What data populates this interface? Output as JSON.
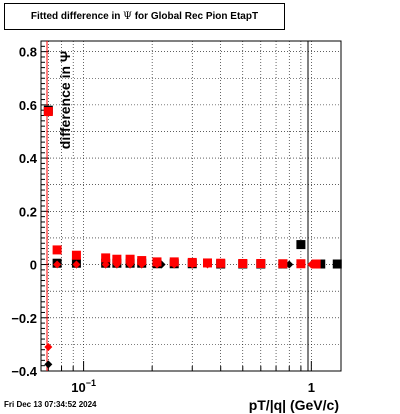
{
  "title": {
    "prefix": "Fitted difference in ",
    "symbol": "Ψ",
    "suffix": " for Global Rec Pion EtapT"
  },
  "timestamp": "Fri Dec 13 07:34:52 2024",
  "chart_data": {
    "type": "scatter",
    "title": "Fitted difference in Ψ for Global Rec Pion EtapT",
    "xlabel": "pT/|q| (GeV/c)",
    "ylabel": "difference in Ψ",
    "x_scale": "log",
    "xlim": [
      0.065,
      1.35
    ],
    "ylim": [
      -0.4,
      0.84
    ],
    "grid": true,
    "x_tick_labels": [
      {
        "value": 0.1,
        "base": "10",
        "exp": "−1"
      },
      {
        "value": 1,
        "base": "1",
        "exp": ""
      }
    ],
    "y_ticks": [
      -0.4,
      -0.2,
      0,
      0.2,
      0.4,
      0.6,
      0.8
    ],
    "y_tick_labels": [
      "−0.4",
      "−0.2",
      "0",
      "0.2",
      "0.4",
      "0.6",
      "0.8"
    ],
    "series": [
      {
        "marker": "square",
        "color": "#000000",
        "points": [
          {
            "x": 0.07,
            "y": 0.58
          },
          {
            "x": 0.0765,
            "y": 0.005
          },
          {
            "x": 0.093,
            "y": 0.005
          },
          {
            "x": 0.125,
            "y": 0.005
          },
          {
            "x": 0.14,
            "y": 0.005
          },
          {
            "x": 0.16,
            "y": 0.005
          },
          {
            "x": 0.18,
            "y": 0.005
          },
          {
            "x": 0.21,
            "y": 0.003
          },
          {
            "x": 0.25,
            "y": 0.003
          },
          {
            "x": 0.3,
            "y": 0.003
          },
          {
            "x": 0.4,
            "y": 0.002
          },
          {
            "x": 0.5,
            "y": 0.002
          },
          {
            "x": 0.6,
            "y": 0.002
          },
          {
            "x": 0.75,
            "y": 0.002
          },
          {
            "x": 0.9,
            "y": 0.075
          },
          {
            "x": 1.1,
            "y": 0.002
          },
          {
            "x": 1.3,
            "y": 0.002
          }
        ]
      },
      {
        "marker": "diamond",
        "color": "#000000",
        "points": [
          {
            "x": 0.07,
            "y": -0.375
          },
          {
            "x": 0.0765,
            "y": 0.005
          },
          {
            "x": 0.093,
            "y": 0.0
          },
          {
            "x": 0.125,
            "y": 0.0
          },
          {
            "x": 0.14,
            "y": 0.0
          },
          {
            "x": 0.16,
            "y": 0.0
          },
          {
            "x": 0.18,
            "y": 0.0
          },
          {
            "x": 0.22,
            "y": 0.0
          },
          {
            "x": 0.3,
            "y": 0.0
          },
          {
            "x": 0.5,
            "y": 0.0
          },
          {
            "x": 0.8,
            "y": 0.0
          },
          {
            "x": 1.05,
            "y": 0.0
          }
        ]
      },
      {
        "marker": "square",
        "color": "#ff0000",
        "points": [
          {
            "x": 0.07,
            "y": 0.575
          },
          {
            "x": 0.0765,
            "y": 0.055
          },
          {
            "x": 0.093,
            "y": 0.035
          },
          {
            "x": 0.125,
            "y": 0.025
          },
          {
            "x": 0.14,
            "y": 0.02
          },
          {
            "x": 0.16,
            "y": 0.02
          },
          {
            "x": 0.18,
            "y": 0.015
          },
          {
            "x": 0.21,
            "y": 0.01
          },
          {
            "x": 0.25,
            "y": 0.01
          },
          {
            "x": 0.3,
            "y": 0.008
          },
          {
            "x": 0.35,
            "y": 0.006
          },
          {
            "x": 0.4,
            "y": 0.005
          },
          {
            "x": 0.5,
            "y": 0.004
          },
          {
            "x": 0.6,
            "y": 0.004
          },
          {
            "x": 0.75,
            "y": 0.003
          },
          {
            "x": 0.9,
            "y": 0.003
          },
          {
            "x": 1.05,
            "y": 0.002
          }
        ]
      },
      {
        "marker": "diamond",
        "color": "#ff0000",
        "points": [
          {
            "x": 0.07,
            "y": -0.31
          },
          {
            "x": 0.0765,
            "y": 0.0
          },
          {
            "x": 0.093,
            "y": 0.0
          },
          {
            "x": 0.125,
            "y": 0.0
          },
          {
            "x": 0.14,
            "y": 0.0
          },
          {
            "x": 0.16,
            "y": 0.0
          },
          {
            "x": 0.18,
            "y": 0.0
          },
          {
            "x": 0.21,
            "y": 0.0
          },
          {
            "x": 0.25,
            "y": 0.0
          },
          {
            "x": 0.3,
            "y": 0.0
          },
          {
            "x": 0.35,
            "y": 0.0
          },
          {
            "x": 0.4,
            "y": 0.0
          },
          {
            "x": 0.5,
            "y": 0.0
          },
          {
            "x": 0.6,
            "y": 0.0
          },
          {
            "x": 0.75,
            "y": 0.0
          },
          {
            "x": 0.9,
            "y": 0.0
          },
          {
            "x": 1.0,
            "y": 0.0
          }
        ]
      }
    ]
  }
}
